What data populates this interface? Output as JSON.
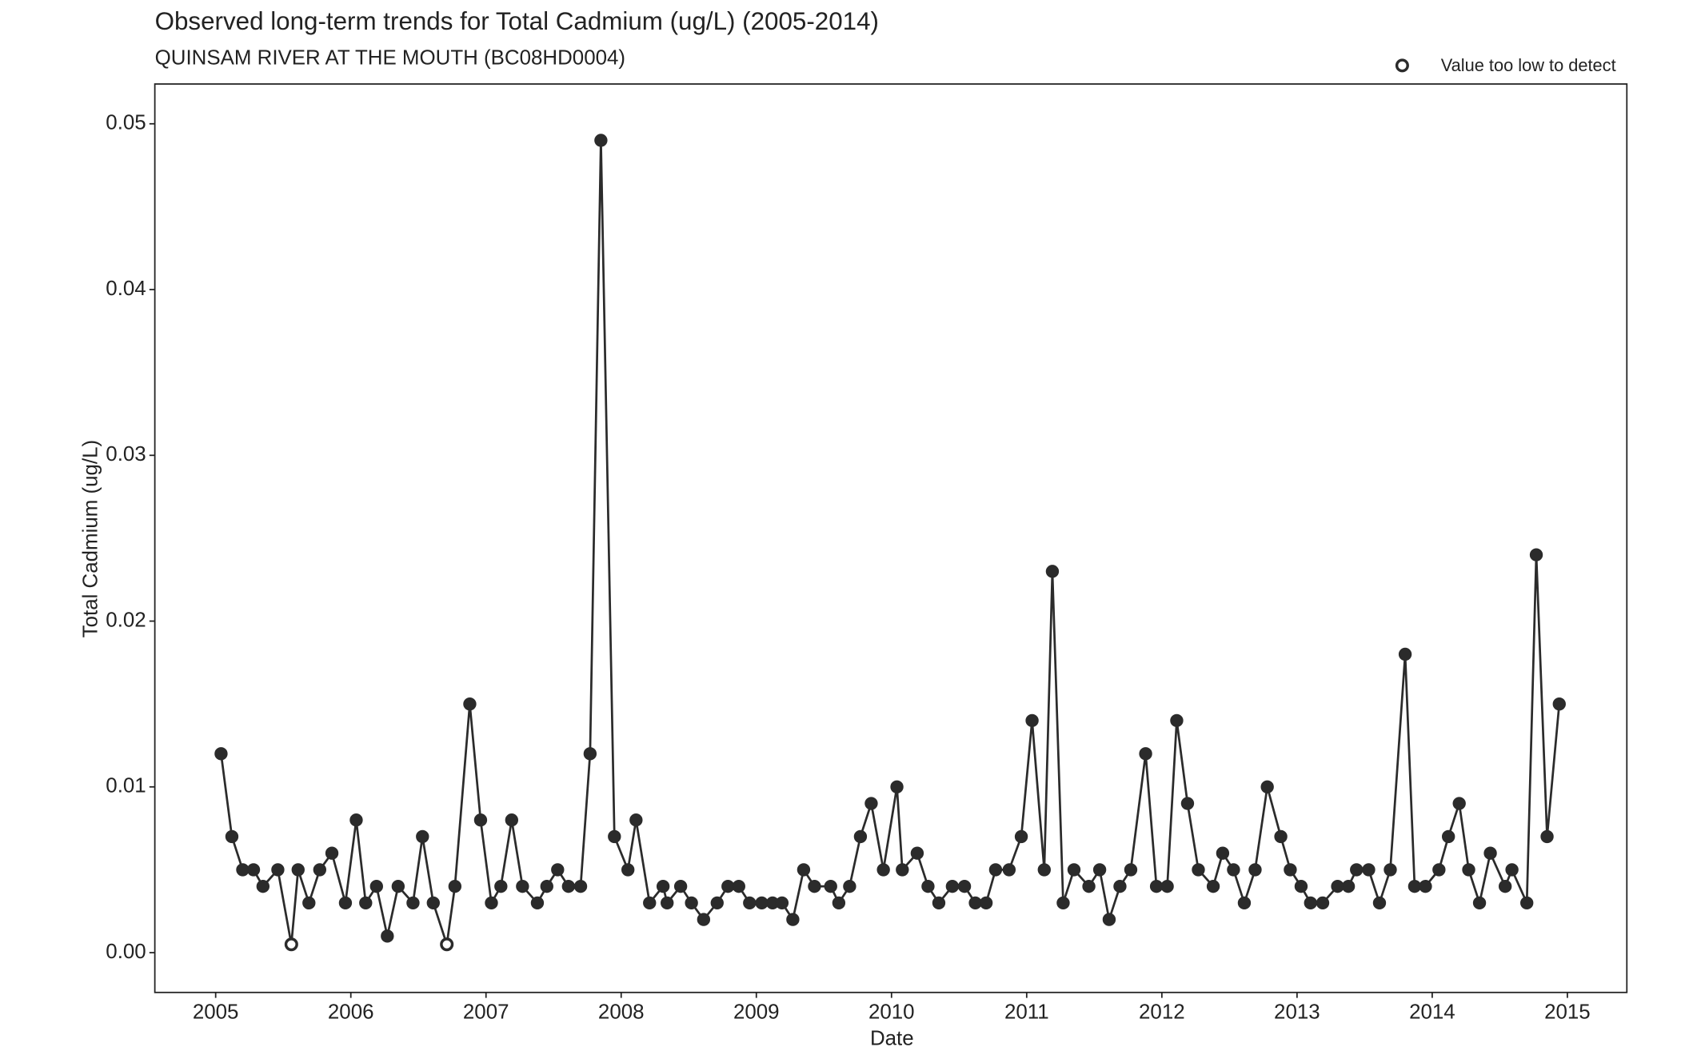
{
  "chart_data": {
    "type": "line",
    "title": "Observed long-term trends for Total Cadmium (ug/L) (2005-2014)",
    "subtitle": "QUINSAM RIVER AT THE MOUTH (BC08HD0004)",
    "x_label": "Date",
    "y_label": "Total Cadmium (ug/L)",
    "legend": "Value too low to detect",
    "legend_position": "top-right",
    "color": "#2b2b2b",
    "xlim": [
      2004.55,
      2015.44
    ],
    "ylim": [
      -0.0024,
      0.0524
    ],
    "xticks": [
      2005,
      2006,
      2007,
      2008,
      2009,
      2010,
      2011,
      2012,
      2013,
      2014,
      2015
    ],
    "yticks": [
      {
        "value": 0,
        "label": "0.00"
      },
      {
        "value": 0.01,
        "label": "0.01"
      },
      {
        "value": 0.02,
        "label": "0.02"
      },
      {
        "value": 0.03,
        "label": "0.03"
      },
      {
        "value": 0.04,
        "label": "0.04"
      },
      {
        "value": 0.05,
        "label": "0.05"
      }
    ],
    "x": [
      2005.04,
      2005.12,
      2005.2,
      2005.28,
      2005.35,
      2005.46,
      2005.56,
      2005.61,
      2005.69,
      2005.77,
      2005.86,
      2005.96,
      2006.04,
      2006.11,
      2006.19,
      2006.27,
      2006.35,
      2006.46,
      2006.53,
      2006.61,
      2006.71,
      2006.77,
      2006.88,
      2006.96,
      2007.04,
      2007.11,
      2007.19,
      2007.27,
      2007.38,
      2007.45,
      2007.53,
      2007.61,
      2007.7,
      2007.77,
      2007.85,
      2007.95,
      2008.05,
      2008.11,
      2008.21,
      2008.31,
      2008.34,
      2008.44,
      2008.52,
      2008.61,
      2008.71,
      2008.79,
      2008.87,
      2008.95,
      2009.04,
      2009.12,
      2009.19,
      2009.27,
      2009.35,
      2009.43,
      2009.55,
      2009.61,
      2009.69,
      2009.77,
      2009.85,
      2009.94,
      2010.04,
      2010.08,
      2010.19,
      2010.27,
      2010.35,
      2010.45,
      2010.54,
      2010.62,
      2010.7,
      2010.77,
      2010.87,
      2010.96,
      2011.04,
      2011.13,
      2011.19,
      2011.27,
      2011.35,
      2011.46,
      2011.54,
      2011.61,
      2011.69,
      2011.77,
      2011.88,
      2011.96,
      2012.04,
      2012.11,
      2012.19,
      2012.27,
      2012.38,
      2012.45,
      2012.53,
      2012.61,
      2012.69,
      2012.78,
      2012.88,
      2012.95,
      2013.03,
      2013.1,
      2013.19,
      2013.3,
      2013.38,
      2013.44,
      2013.53,
      2013.61,
      2013.69,
      2013.8,
      2013.87,
      2013.95,
      2014.05,
      2014.12,
      2014.2,
      2014.27,
      2014.35,
      2014.43,
      2014.54,
      2014.59,
      2014.7,
      2014.77,
      2014.85,
      2014.94
    ],
    "values": [
      0.012,
      0.007,
      0.005,
      0.005,
      0.004,
      0.005,
      0.0005,
      0.005,
      0.003,
      0.005,
      0.006,
      0.003,
      0.008,
      0.003,
      0.004,
      0.001,
      0.004,
      0.003,
      0.007,
      0.003,
      0.0005,
      0.004,
      0.015,
      0.008,
      0.003,
      0.004,
      0.008,
      0.004,
      0.003,
      0.004,
      0.005,
      0.004,
      0.004,
      0.012,
      0.049,
      0.007,
      0.005,
      0.008,
      0.003,
      0.004,
      0.003,
      0.004,
      0.003,
      0.002,
      0.003,
      0.004,
      0.004,
      0.003,
      0.003,
      0.003,
      0.003,
      0.002,
      0.005,
      0.004,
      0.004,
      0.003,
      0.004,
      0.007,
      0.009,
      0.005,
      0.01,
      0.005,
      0.006,
      0.004,
      0.003,
      0.004,
      0.004,
      0.003,
      0.003,
      0.005,
      0.005,
      0.007,
      0.014,
      0.005,
      0.023,
      0.003,
      0.005,
      0.004,
      0.005,
      0.002,
      0.004,
      0.005,
      0.012,
      0.004,
      0.004,
      0.014,
      0.009,
      0.005,
      0.004,
      0.006,
      0.005,
      0.003,
      0.005,
      0.01,
      0.007,
      0.005,
      0.004,
      0.003,
      0.003,
      0.004,
      0.004,
      0.005,
      0.005,
      0.003,
      0.005,
      0.018,
      0.004,
      0.004,
      0.005,
      0.007,
      0.009,
      0.005,
      0.003,
      0.006,
      0.004,
      0.005,
      0.003,
      0.024,
      0.007,
      0.015
    ],
    "too_low_to_detect": [
      6,
      20
    ]
  }
}
